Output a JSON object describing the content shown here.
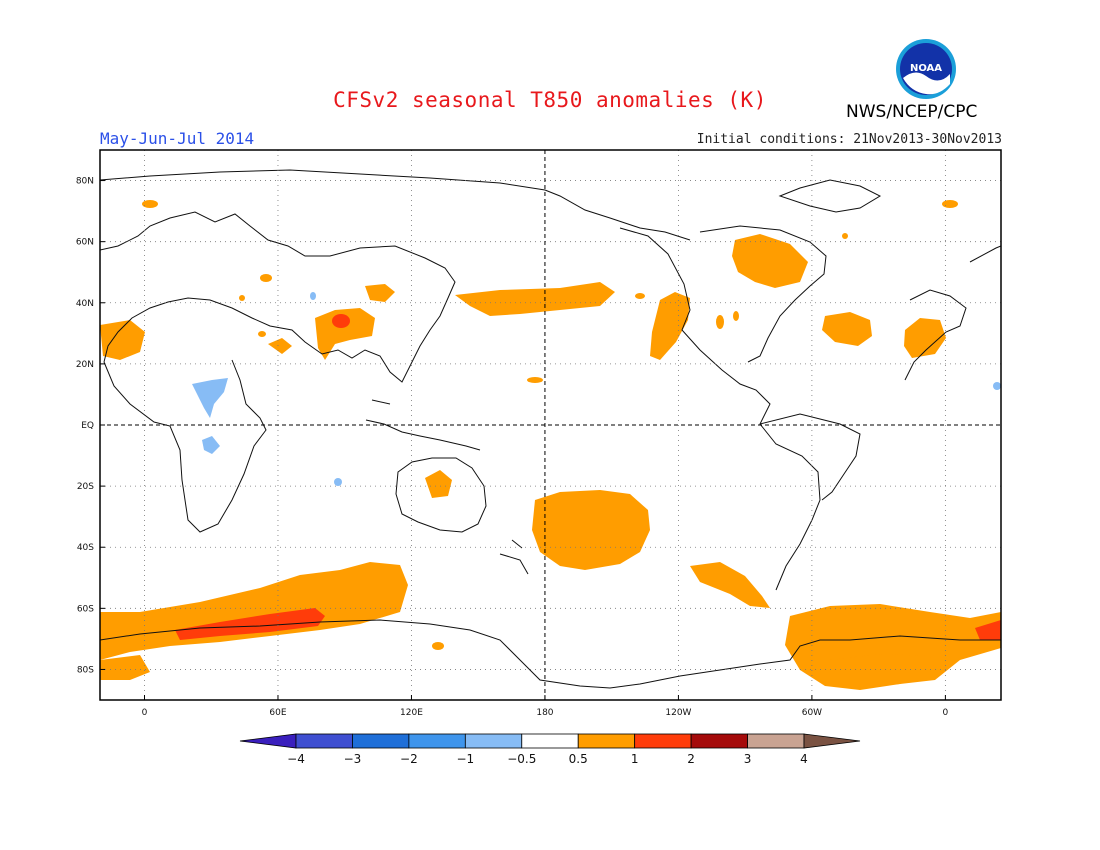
{
  "title": "CFSv2 seasonal T850 anomalies (K)",
  "period": "May-Jun-Jul 2014",
  "agency": "NWS/NCEP/CPC",
  "initial_conditions": "Initial conditions: 21Nov2013-30Nov2013",
  "logo": {
    "text": "NOAA",
    "icon": "noaa-logo"
  },
  "map": {
    "lat_labels": [
      "80N",
      "60N",
      "40N",
      "20N",
      "EQ",
      "20S",
      "40S",
      "60S",
      "80S"
    ],
    "lat_values": [
      80,
      60,
      40,
      20,
      0,
      -20,
      -40,
      -60,
      -80
    ],
    "lon_labels": [
      "0",
      "60E",
      "120E",
      "180",
      "120W",
      "60W",
      "0"
    ],
    "lon_values": [
      0,
      60,
      120,
      180,
      240,
      300,
      360
    ],
    "lon_range": [
      -20,
      385
    ],
    "lat_range": [
      -90,
      90
    ],
    "grid": "dotted",
    "reference_lines": [
      "EQ",
      "180"
    ]
  },
  "colorbar": {
    "ticks": [
      "-4",
      "-3",
      "-2",
      "-1",
      "-0.5",
      "0.5",
      "1",
      "2",
      "3",
      "4"
    ],
    "colors": [
      "#3a1fbd",
      "#3f4fd1",
      "#1f6fd8",
      "#3f95ec",
      "#87bcf5",
      "#ffffff",
      "#ff9d00",
      "#ff3c0a",
      "#a50b0b",
      "#c9a392",
      "#7a5242"
    ]
  },
  "anomaly_colors": {
    "warm1": "#ff9d00",
    "warm2": "#ff3c0a",
    "cool1": "#87bcf5"
  }
}
